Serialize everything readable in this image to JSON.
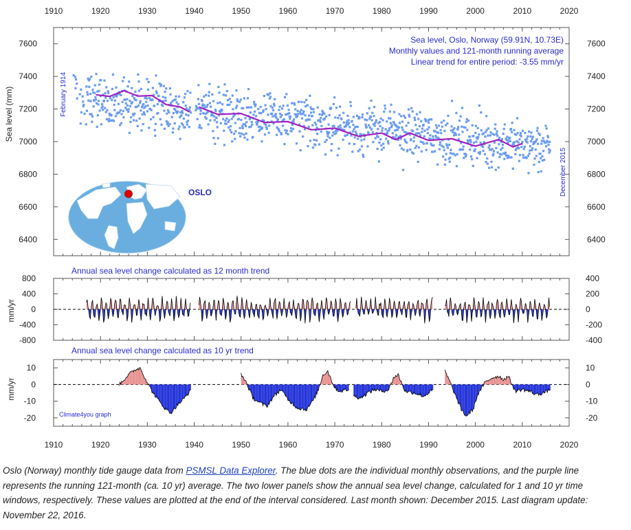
{
  "chart_data": [
    {
      "type": "scatter",
      "title": "Sea level, Oslo, Norway (59.91N, 10.73E)",
      "subtitle": "Monthly values and 121-month running average",
      "trend_note": "Linear trend for entire period: -3.55 mm/yr",
      "ylabel": "Sea level (mm)",
      "xlim": [
        1910,
        2020
      ],
      "ylim": [
        6300,
        7700
      ],
      "x_ticks": [
        1910,
        1920,
        1930,
        1940,
        1950,
        1960,
        1970,
        1980,
        1990,
        2000,
        2010,
        2020
      ],
      "y_ticks": [
        6400,
        6600,
        6800,
        7000,
        7200,
        7400,
        7600
      ],
      "start_label": "February 1914",
      "end_label": "December 2015",
      "data_gap": [
        1939.3,
        1940.3
      ],
      "scatter_center_start": 7275,
      "scatter_center_end": 6960,
      "scatter_spread_mm": 110,
      "running_average": {
        "name": "121-month running average",
        "x": [
          1919,
          1922,
          1925,
          1928,
          1931,
          1934,
          1937,
          1939,
          1941,
          1945,
          1950,
          1955,
          1960,
          1965,
          1970,
          1975,
          1980,
          1983,
          1986,
          1990,
          1995,
          2000,
          2005,
          2008,
          2010
        ],
        "y": [
          7275,
          7290,
          7300,
          7292,
          7270,
          7240,
          7200,
          7195,
          7200,
          7180,
          7160,
          7130,
          7110,
          7085,
          7070,
          7045,
          7040,
          7025,
          7040,
          7020,
          7005,
          6985,
          7000,
          6980,
          6975
        ]
      },
      "map_label": "OSLO",
      "series_colors": {
        "points": "#6a9cf0",
        "average": "#a020c0"
      }
    },
    {
      "type": "area",
      "title": "Annual sea level change calculated as 12 month trend",
      "ylabel": "mm/yr",
      "ylim": [
        -800,
        800
      ],
      "y_ticks": [
        -800,
        -400,
        0,
        400,
        800
      ],
      "y_ticks_right": [
        -400,
        -200,
        0,
        200,
        400
      ],
      "segments": [
        [
          1917,
          1939.3
        ],
        [
          1941,
          1973.5
        ],
        [
          1974.5,
          1991
        ],
        [
          1993.5,
          2016
        ]
      ],
      "typical_amplitude_mm_per_yr": 210,
      "colors": {
        "positive": "#e89090",
        "negative": "#2030d8"
      }
    },
    {
      "type": "area",
      "title": "Annual sea level change calculated as 10 yr trend",
      "ylabel": "mm/yr",
      "ylim": [
        -25,
        15
      ],
      "y_ticks": [
        -20,
        -10,
        0,
        10
      ],
      "segments": [
        {
          "x": [
            1924,
            1926,
            1927.5,
            1928.5,
            1929.5,
            1931,
            1932.5,
            1934,
            1935,
            1936.5,
            1938,
            1939.3
          ],
          "y": [
            0,
            6,
            9,
            10,
            4,
            -4,
            -10,
            -15,
            -17,
            -12,
            -8,
            -3
          ]
        },
        {
          "x": [
            1950,
            1951,
            1952.5,
            1954,
            1955.5,
            1957,
            1958.5,
            1960,
            1962,
            1964,
            1965.5,
            1966.5,
            1967.5,
            1968.5,
            1970,
            1971,
            1973
          ],
          "y": [
            6,
            2,
            -8,
            -11,
            -13,
            -7,
            -3,
            -9,
            -14,
            -15,
            -9,
            -3,
            6,
            8,
            -2,
            -4,
            -3
          ]
        },
        {
          "x": [
            1974,
            1975.5,
            1977,
            1978.5,
            1980,
            1981.5,
            1982.5,
            1983.5,
            1985,
            1987,
            1989,
            1991
          ],
          "y": [
            -7,
            -8,
            -5,
            -3,
            -4,
            -3,
            4,
            6,
            -4,
            -5,
            -7,
            -3
          ]
        },
        {
          "x": [
            1993.5,
            1994.5,
            1995.5,
            1997,
            1998,
            1999.5,
            2000.5,
            2002,
            2003.5,
            2005,
            2006,
            2007,
            2008.5,
            2010,
            2011.5,
            2013,
            2014.5,
            2016
          ],
          "y": [
            8,
            2,
            -5,
            -15,
            -19,
            -15,
            -6,
            1,
            4,
            5,
            3,
            5,
            -4,
            -3,
            -4,
            -6,
            -5,
            -3
          ]
        }
      ],
      "colors": {
        "positive": "#e89090",
        "negative": "#2030d8"
      }
    }
  ],
  "watermark": "Climate4you graph",
  "caption": {
    "part1": "Oslo (Norway) monthly tide gauge data from ",
    "link": "PSMSL Data Explorer",
    "part2": ". The blue dots are the individual monthly observations, and the purple line represents the running 121-month (ca. 10 yr) average. The two lower panels show the annual sea level change, calculated for 1 and 10 yr time windows, respectively. These values are plotted at the end of the interval considered. Last month shown: December 2015. Last diagram update: November 22, 2016."
  }
}
